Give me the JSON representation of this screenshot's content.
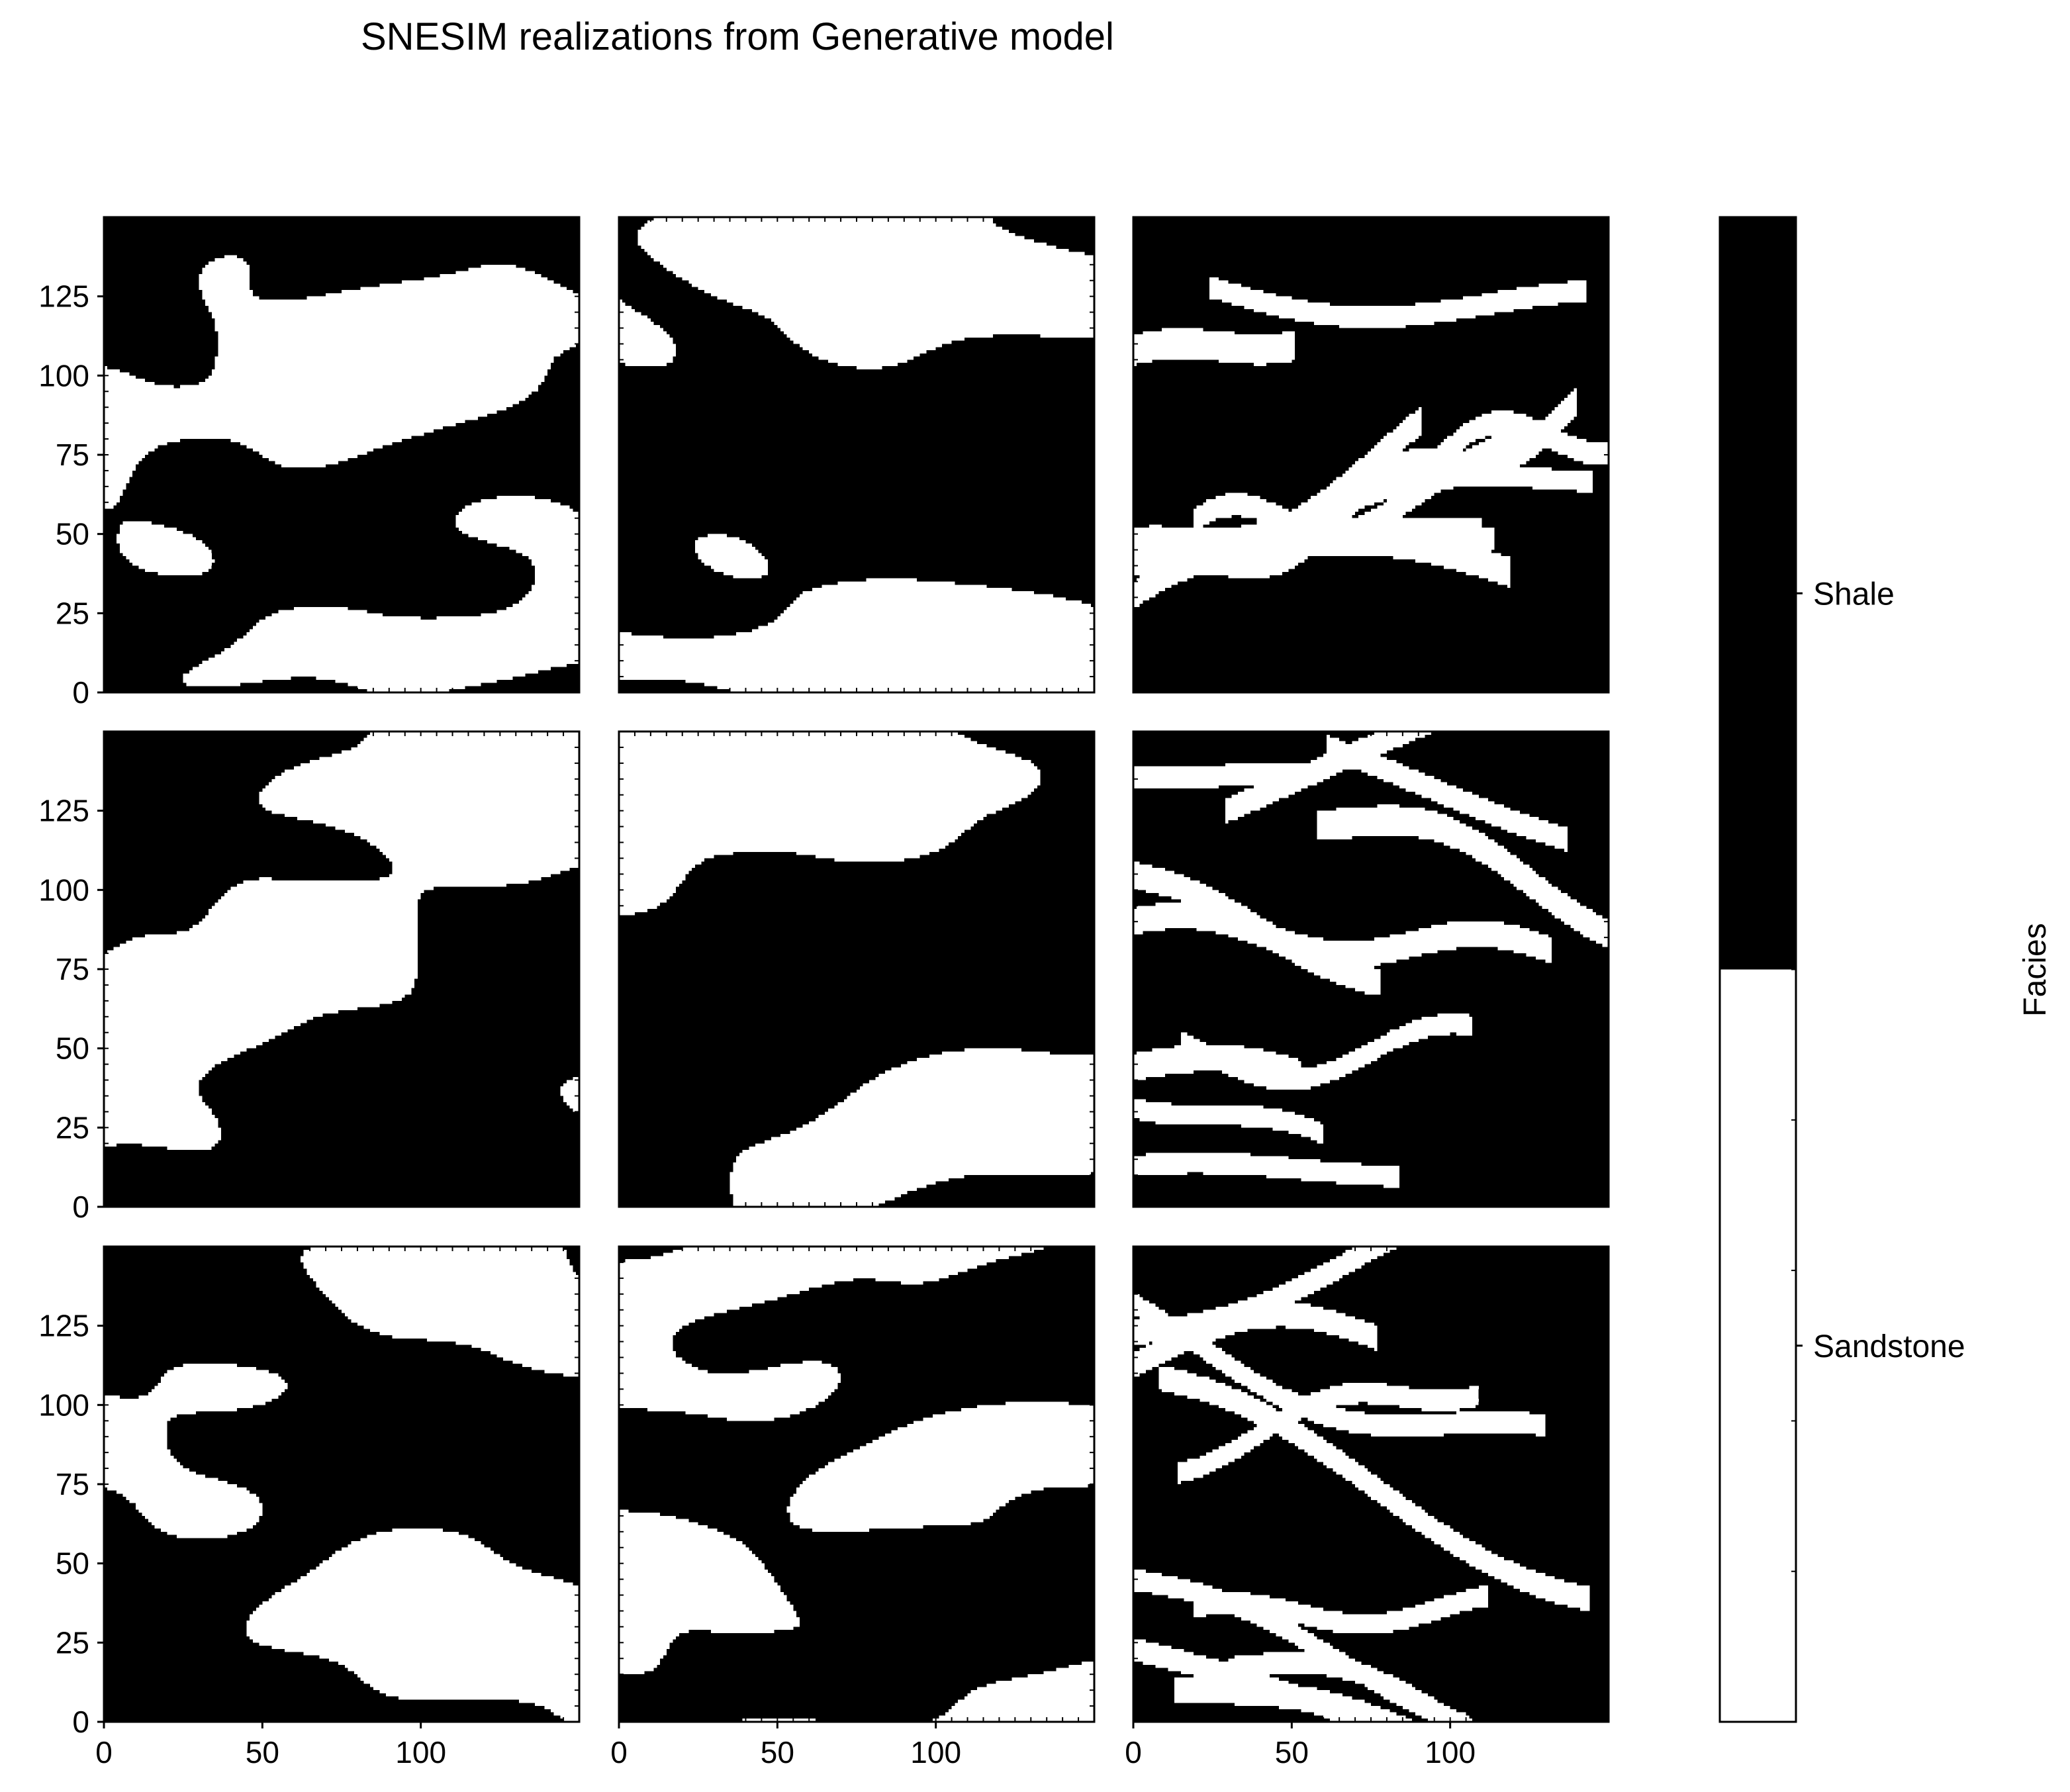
{
  "chart_data": {
    "type": "heatmap",
    "title": "SNESIM realizations from Generative model",
    "grid": {
      "rows": 3,
      "cols": 3,
      "sharex": true,
      "sharey": true
    },
    "panel_shape": [
      150,
      150
    ],
    "xlim": [
      0,
      150
    ],
    "ylim": [
      0,
      150
    ],
    "x_ticks": [
      "0",
      "50",
      "100"
    ],
    "y_ticks": [
      "0",
      "25",
      "50",
      "75",
      "100",
      "125"
    ],
    "grid_lines": false,
    "colorbar": {
      "label": "Facies",
      "position": "right",
      "categories": [
        {
          "name": "Sandstone",
          "value": 0,
          "color": "#ffffff"
        },
        {
          "name": "Shale",
          "value": 1,
          "color": "#000000"
        }
      ]
    },
    "panels": [
      {
        "row": 0,
        "col": 0,
        "style": "blobby",
        "sandstone_fraction": 0.45,
        "seed": 11
      },
      {
        "row": 0,
        "col": 1,
        "style": "blobby",
        "sandstone_fraction": 0.42,
        "seed": 23
      },
      {
        "row": 0,
        "col": 2,
        "style": "channels",
        "sandstone_fraction": 0.28,
        "seed": 37
      },
      {
        "row": 1,
        "col": 0,
        "style": "blobby",
        "sandstone_fraction": 0.4,
        "seed": 41
      },
      {
        "row": 1,
        "col": 1,
        "style": "blobby",
        "sandstone_fraction": 0.4,
        "seed": 53
      },
      {
        "row": 1,
        "col": 2,
        "style": "channels",
        "sandstone_fraction": 0.25,
        "seed": 67
      },
      {
        "row": 2,
        "col": 0,
        "style": "blobby",
        "sandstone_fraction": 0.38,
        "seed": 71
      },
      {
        "row": 2,
        "col": 1,
        "style": "blobby",
        "sandstone_fraction": 0.37,
        "seed": 83
      },
      {
        "row": 2,
        "col": 2,
        "style": "channels",
        "sandstone_fraction": 0.27,
        "seed": 97
      }
    ]
  }
}
